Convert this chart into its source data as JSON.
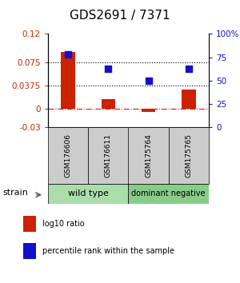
{
  "title": "GDS2691 / 7371",
  "samples": [
    "GSM176606",
    "GSM176611",
    "GSM175764",
    "GSM175765"
  ],
  "log10_ratio": [
    0.091,
    0.015,
    -0.005,
    0.031
  ],
  "percentile_rank": [
    78,
    63,
    50,
    63
  ],
  "ylim_left": [
    -0.03,
    0.12
  ],
  "yticks_left": [
    -0.03,
    0,
    0.0375,
    0.075,
    0.12
  ],
  "ytick_labels_left": [
    "-0.03",
    "0",
    "0.0375",
    "0.075",
    "0.12"
  ],
  "hlines": [
    0.075,
    0.0375
  ],
  "right_axis_ticks_pct": [
    0,
    25,
    50,
    75,
    100
  ],
  "right_axis_labels": [
    "0",
    "25",
    "50",
    "75",
    "100%"
  ],
  "bar_color": "#cc2200",
  "dot_color": "#1111cc",
  "zero_line_color": "#cc2200",
  "zero_line_style": "-.",
  "hline_style": ":",
  "hline_color": "black",
  "group1_label": "wild type",
  "group1_color": "#aaddaa",
  "group2_label": "dominant negative",
  "group2_color": "#88cc88",
  "strain_label": "strain",
  "legend_red": "log10 ratio",
  "legend_blue": "percentile rank within the sample",
  "bar_width": 0.35,
  "dot_size": 30,
  "title_fontsize": 11,
  "tick_fontsize": 7.5,
  "legend_fontsize": 7,
  "group_fontsize": 8,
  "strain_fontsize": 8,
  "sample_fontsize": 6.5,
  "sample_box_color": "#cccccc"
}
